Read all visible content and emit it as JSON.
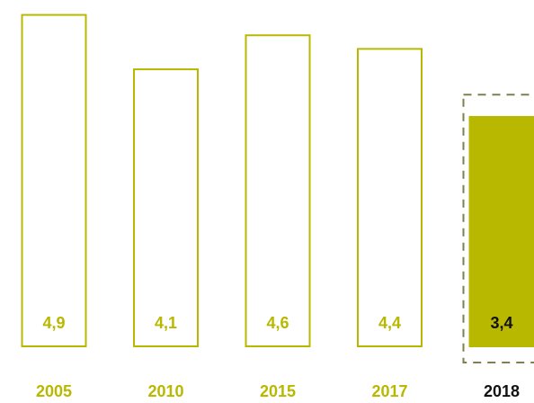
{
  "chart_data": {
    "type": "bar",
    "categories": [
      "2005",
      "2010",
      "2015",
      "2017",
      "2018"
    ],
    "values": [
      "4,9",
      "4,1",
      "4,6",
      "4,4",
      "3,4"
    ],
    "numeric_values": [
      4.9,
      4.1,
      4.6,
      4.4,
      3.4
    ],
    "highlight_index": 4,
    "highlight_target_value": 3.7,
    "ylim": [
      0,
      5
    ],
    "grid": false,
    "legend": "none",
    "title": "",
    "xlabel": "",
    "ylabel": ""
  },
  "colors": {
    "accent": "#b9b800",
    "highlight_fill": "#b9b800",
    "highlight_text": "#111111",
    "dashed_outline": "#7f7f50",
    "background": "#ffffff"
  }
}
